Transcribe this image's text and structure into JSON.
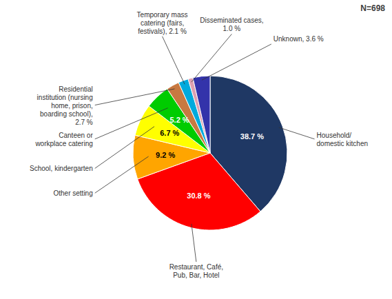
{
  "chart_data": {
    "type": "pie",
    "categories": [
      "Household/\ndomestic kitchen",
      "Restaurant, Café,\nPub, Bar, Hotel",
      "Other setting",
      "School, kindergarten",
      "Canteen or\nworkplace catering",
      "Residential\ninstitution (nursing\nhome, prison,\nboarding school),\n2.7 %",
      "Temporary mass\ncatering (fairs,\nfestivals), 2.1 %",
      "Disseminated cases,\n1.0 %",
      "Unknown, 3.6 %"
    ],
    "values": [
      38.7,
      30.8,
      9.2,
      6.7,
      5.2,
      2.7,
      2.1,
      1.0,
      3.6
    ],
    "colors": [
      "#1F3864",
      "#FF0000",
      "#FFA500",
      "#FFFF00",
      "#00CC00",
      "#C87941",
      "#00AADD",
      "#DDA0B0",
      "#3333AA"
    ],
    "data_labels": true,
    "value_labels": [
      "38.7 %",
      "30.8 %",
      "9.2 %",
      "6.7 %",
      "5.2 %",
      null,
      null,
      null,
      null
    ],
    "annotations": [
      "N=698"
    ]
  }
}
